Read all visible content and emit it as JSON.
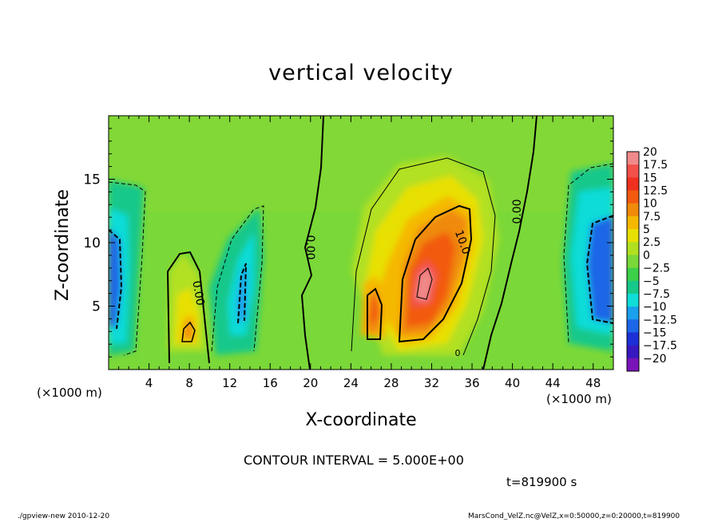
{
  "chart_data": {
    "type": "heatmap",
    "title": "vertical velocity",
    "xlabel": "X-coordinate",
    "ylabel": "Z-coordinate",
    "x_unit_label": "(×1000 m)",
    "xlim": [
      0,
      50
    ],
    "ylim": [
      0,
      20
    ],
    "x_ticks": [
      "4",
      "8",
      "12",
      "16",
      "20",
      "24",
      "28",
      "32",
      "36",
      "40",
      "44",
      "48"
    ],
    "y_ticks": [
      "5",
      "10",
      "15"
    ],
    "colorbar": {
      "labels": [
        "20",
        "17.5",
        "15",
        "12.5",
        "10",
        "7.5",
        "5",
        "2.5",
        "0",
        "−2.5",
        "−5",
        "−7.5",
        "−10",
        "−12.5",
        "−15",
        "−17.5",
        "−20"
      ],
      "colors": [
        "#f08a8a",
        "#f2504a",
        "#f0301e",
        "#f25a10",
        "#f08a0a",
        "#f5b800",
        "#e8e000",
        "#b2e020",
        "#7ad838",
        "#3cd048",
        "#16c88a",
        "#10dcd8",
        "#1aa0ec",
        "#1c66e8",
        "#1c30d8",
        "#3818c0",
        "#7a14b8"
      ]
    },
    "contour_labels": [
      "0.00",
      "0.00",
      "0.00",
      "10.0",
      "0.00"
    ],
    "features": [
      {
        "kind": "updraft",
        "x": 8,
        "z": 3.5,
        "peak": 10
      },
      {
        "kind": "updraft",
        "x": 26,
        "z": 5,
        "peak": 12
      },
      {
        "kind": "updraft",
        "x": 31.5,
        "z": 7.5,
        "peak": 18
      },
      {
        "kind": "downdraft",
        "x": 1,
        "z": 6,
        "peak": -12
      },
      {
        "kind": "downdraft",
        "x": 13,
        "z": 5,
        "peak": -7
      },
      {
        "kind": "downdraft",
        "x": 48,
        "z": 7,
        "peak": -12
      }
    ],
    "contour_interval": "CONTOUR INTERVAL = 5.000E+00",
    "time": "t=819900 s"
  },
  "footer": {
    "left": "./gpview-new  2010-12-20",
    "right": "MarsCond_VelZ.nc@VelZ,x=0:50000,z=0:20000,t=819900"
  }
}
